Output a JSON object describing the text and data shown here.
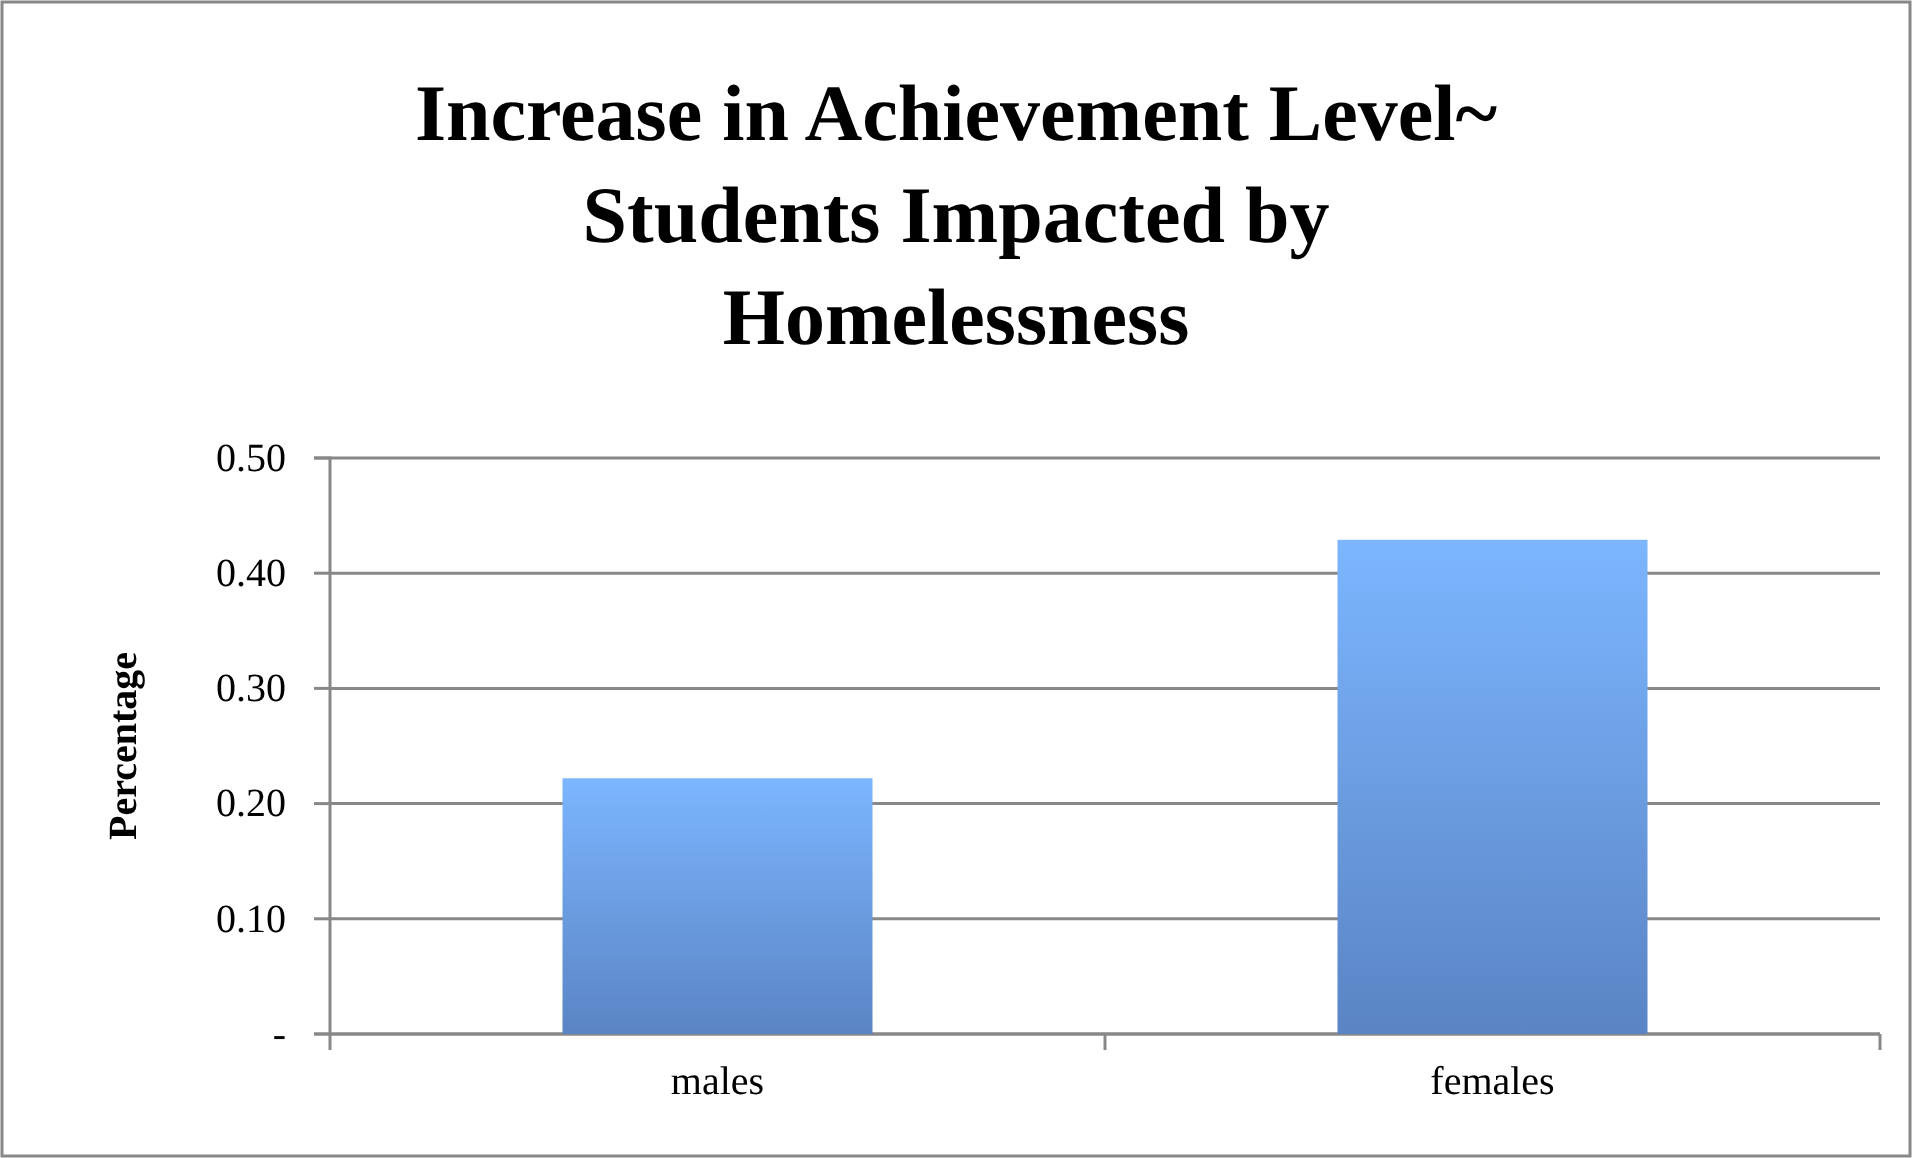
{
  "chart_data": {
    "type": "bar",
    "title": "Increase in Achievement Level~ Students Impacted by Homelessness",
    "ylabel": "Percentage",
    "categories": [
      "males",
      "females"
    ],
    "values": [
      0.222,
      0.429
    ],
    "color": "#6a9be6",
    "ylim": [
      0,
      0.5
    ],
    "yticks": [
      {
        "value": 0,
        "label": "-"
      },
      {
        "value": 0.1,
        "label": "0.10"
      },
      {
        "value": 0.2,
        "label": "0.20"
      },
      {
        "value": 0.3,
        "label": "0.30"
      },
      {
        "value": 0.4,
        "label": "0.40"
      },
      {
        "value": 0.5,
        "label": "0.50"
      }
    ],
    "grid": "y"
  }
}
